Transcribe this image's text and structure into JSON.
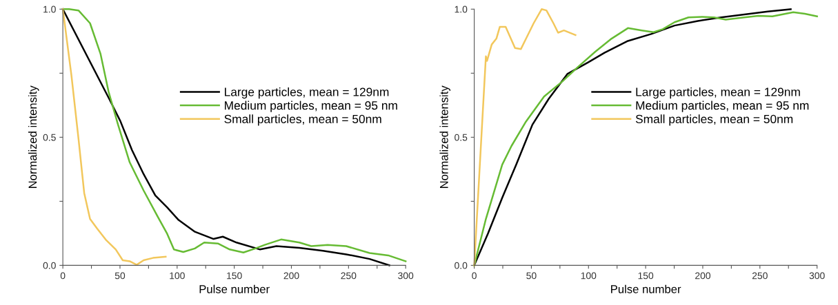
{
  "chart_data": [
    {
      "type": "line",
      "xlabel": "Pulse number",
      "ylabel": "Normalized intensity",
      "xlim": [
        0,
        300
      ],
      "ylim": [
        0,
        1
      ],
      "xticks": [
        0,
        {
          "value": 25,
          "label": null
        },
        50,
        {
          "value": 75,
          "label": null
        },
        100,
        {
          "value": 125,
          "label": null
        },
        150,
        {
          "value": 175,
          "label": null
        },
        200,
        {
          "value": 225,
          "label": null
        },
        250,
        {
          "value": 275,
          "label": null
        },
        300
      ],
      "yticks": [
        {
          "value": 0,
          "label": "0.0"
        },
        {
          "value": 0.25,
          "label": null
        },
        {
          "value": 0.5,
          "label": "0.5"
        },
        {
          "value": 0.75,
          "label": null
        },
        {
          "value": 1,
          "label": "1.0"
        }
      ],
      "legend": "right",
      "grid": false,
      "marker": "none",
      "line_style": "solid",
      "series": [
        {
          "name": "Large particles, mean = 129nm",
          "color": "#000000",
          "x": [
            0,
            41,
            50.3,
            60.5,
            70.7,
            80.9,
            91.1,
            101.3,
            115.6,
            131.9,
            140,
            152,
            172.6,
            186.9,
            207,
            227.6,
            248,
            268.4,
            285.7
          ],
          "values": [
            1,
            0.646,
            0.563,
            0.45,
            0.356,
            0.273,
            0.227,
            0.177,
            0.131,
            0.103,
            0.112,
            0.089,
            0.062,
            0.075,
            0.068,
            0.057,
            0.043,
            0.025,
            0
          ]
        },
        {
          "name": "Medium particles, mean = 95 nm",
          "color": "#66bb33",
          "x": [
            0,
            5.5,
            13.7,
            23.8,
            33,
            40,
            48.3,
            58.5,
            70.7,
            83,
            91,
            97.2,
            105.4,
            115.5,
            123.7,
            136,
            146,
            158,
            168.5,
            176.7,
            191,
            207,
            217.4,
            231.7,
            248,
            268.4,
            284.7,
            300
          ],
          "values": [
            1,
            1,
            0.995,
            0.945,
            0.825,
            0.678,
            0.549,
            0.402,
            0.292,
            0.19,
            0.126,
            0.062,
            0.052,
            0.066,
            0.089,
            0.085,
            0.062,
            0.05,
            0.066,
            0.08,
            0.101,
            0.089,
            0.075,
            0.08,
            0.075,
            0.048,
            0.039,
            0.016
          ]
        },
        {
          "name": "Small particles, mean = 50nm",
          "color": "#f2c75c",
          "x": [
            0,
            7.5,
            13.7,
            18.7,
            23.8,
            29.9,
            38,
            46.3,
            52.4,
            58.5,
            64.6,
            70.7,
            78.9,
            90
          ],
          "values": [
            1,
            0.742,
            0.494,
            0.282,
            0.181,
            0.144,
            0.098,
            0.062,
            0.02,
            0.016,
            0.002,
            0.02,
            0.029,
            0.034
          ]
        }
      ]
    },
    {
      "type": "line",
      "xlabel": "Pulse number",
      "ylabel": "Normalized intensity",
      "xlim": [
        0,
        300
      ],
      "ylim": [
        0,
        1
      ],
      "xticks": [
        0,
        {
          "value": 25,
          "label": null
        },
        50,
        {
          "value": 75,
          "label": null
        },
        100,
        {
          "value": 125,
          "label": null
        },
        150,
        {
          "value": 175,
          "label": null
        },
        200,
        {
          "value": 225,
          "label": null
        },
        250,
        {
          "value": 275,
          "label": null
        },
        300
      ],
      "yticks": [
        {
          "value": 0,
          "label": "0.0"
        },
        {
          "value": 0.25,
          "label": null
        },
        {
          "value": 0.5,
          "label": "0.5"
        },
        {
          "value": 0.75,
          "label": null
        },
        {
          "value": 1,
          "label": "1.0"
        }
      ],
      "legend": "right",
      "grid": false,
      "marker": "none",
      "line_style": "solid",
      "series": [
        {
          "name": "Large particles, mean = 129nm",
          "color": "#000000",
          "x": [
            0,
            12.2,
            24.5,
            36.7,
            50.9,
            65.2,
            81.5,
            99.9,
            114,
            134.5,
            154.9,
            175.3,
            195.6,
            216,
            236.4,
            256.8,
            277
          ],
          "values": [
            0,
            0.126,
            0.264,
            0.393,
            0.549,
            0.65,
            0.747,
            0.793,
            0.83,
            0.876,
            0.903,
            0.936,
            0.954,
            0.968,
            0.979,
            0.991,
            1
          ]
        },
        {
          "name": "Medium particles, mean = 95 nm",
          "color": "#66bb33",
          "x": [
            0,
            10.2,
            24.5,
            32.6,
            44.8,
            61.1,
            77.4,
            89.7,
            106,
            120.2,
            134.5,
            146.7,
            156.9,
            165,
            175.3,
            187.5,
            199.7,
            209.9,
            220.1,
            236.4,
            248.6,
            260.9,
            279.2,
            289.4,
            300
          ],
          "values": [
            0,
            0.181,
            0.393,
            0.466,
            0.558,
            0.659,
            0.719,
            0.77,
            0.834,
            0.885,
            0.926,
            0.917,
            0.91,
            0.922,
            0.949,
            0.968,
            0.97,
            0.968,
            0.959,
            0.968,
            0.974,
            0.972,
            0.988,
            0.982,
            0.972
          ]
        },
        {
          "name": "Small particles, mean = 50nm",
          "color": "#f2c75c",
          "x": [
            0,
            10.2,
            11.2,
            15.3,
            19.4,
            22.4,
            27.5,
            35.7,
            40.8,
            45.9,
            52,
            59,
            63.2,
            69.3,
            73.4,
            78.5,
            88.6
          ],
          "values": [
            0,
            0.816,
            0.798,
            0.862,
            0.885,
            0.931,
            0.931,
            0.848,
            0.844,
            0.89,
            0.945,
            1,
            0.995,
            0.945,
            0.908,
            0.917,
            0.899
          ]
        }
      ]
    }
  ]
}
